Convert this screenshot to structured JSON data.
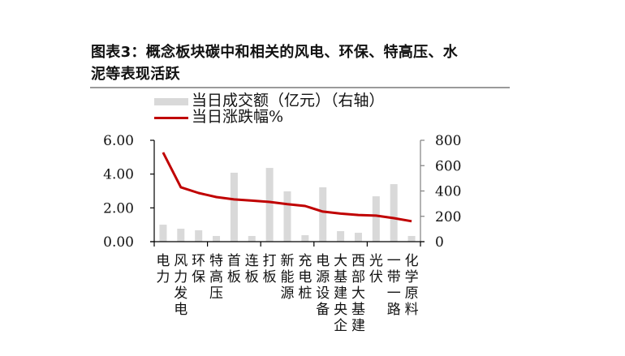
{
  "title": {
    "line1": "图表3：概念板块碳中和相关的风电、环保、特高压、水",
    "line2": "泥等表现活跃"
  },
  "legend": {
    "bar_label": "当日成交额（亿元）（右轴）",
    "line_label": "当日涨跌幅%"
  },
  "colors": {
    "bar": "#d9d9d9",
    "line": "#c00000",
    "axis": "#000000",
    "right_axis": "#808080",
    "divider": "#9a9a9a"
  },
  "axes": {
    "left_ticks": [
      "0.00",
      "2.00",
      "4.00",
      "6.00"
    ],
    "right_ticks": [
      "0",
      "200",
      "400",
      "600",
      "800"
    ]
  },
  "chart_data": {
    "type": "bar+line",
    "title": "图表3：概念板块碳中和相关的风电、环保、特高压、水泥等表现活跃",
    "categories": [
      "电力",
      "风力发电",
      "环保",
      "特高压",
      "首板",
      "连板",
      "打板",
      "新能源",
      "充电桩",
      "电源设备",
      "大基建央企",
      "西部大基建",
      "光伏",
      "一带一路",
      "化学原料"
    ],
    "series": [
      {
        "name": "当日成交额（亿元）（右轴）",
        "type": "bar",
        "axis": "right",
        "values": [
          134,
          102,
          90,
          45,
          544,
          45,
          582,
          397,
          51,
          429,
          83,
          70,
          358,
          454,
          45
        ]
      },
      {
        "name": "当日涨跌幅%",
        "type": "line",
        "axis": "left",
        "values": [
          5.28,
          3.22,
          2.88,
          2.64,
          2.5,
          2.43,
          2.35,
          2.22,
          2.11,
          1.78,
          1.66,
          1.58,
          1.54,
          1.39,
          1.21
        ]
      }
    ],
    "xlabel": "",
    "ylabel_left": "",
    "ylabel_right": "",
    "ylim_left": [
      0,
      6
    ],
    "ylim_right": [
      0,
      800
    ],
    "grid": false,
    "legend_position": "top"
  }
}
